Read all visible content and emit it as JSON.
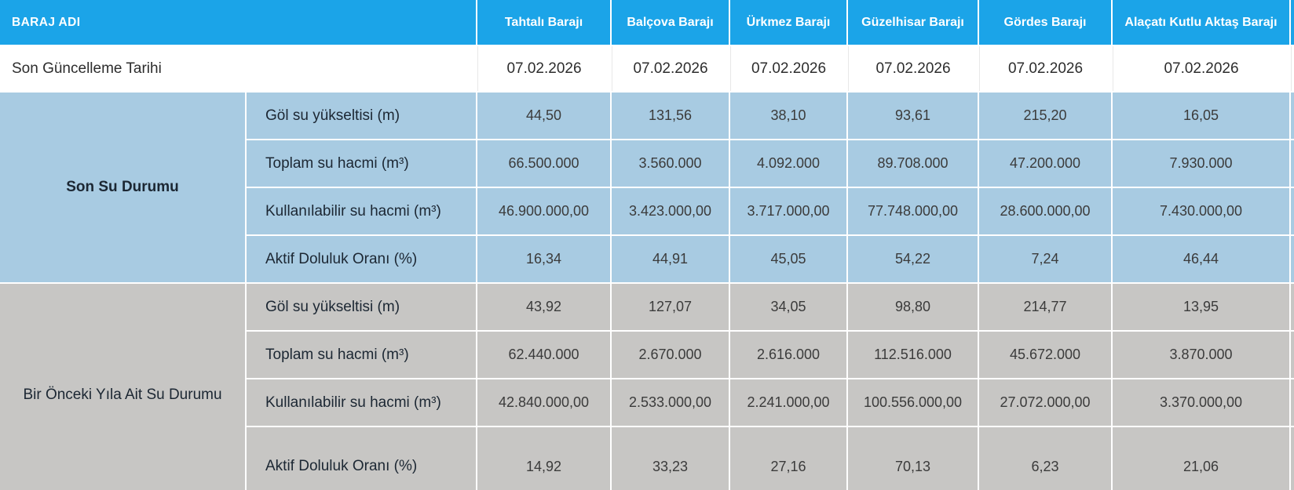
{
  "chart_data": {
    "type": "table",
    "title": "BARAJ ADI",
    "columns": [
      "Tahtalı Barajı",
      "Balçova Barajı",
      "Ürkmez Barajı",
      "Güzelhisar Barajı",
      "Gördes Barajı",
      "Alaçatı Kutlu Aktaş Barajı"
    ],
    "update_label": "Son Güncelleme Tarihi",
    "update_dates": [
      "07.02.2026",
      "07.02.2026",
      "07.02.2026",
      "07.02.2026",
      "07.02.2026",
      "07.02.2026"
    ],
    "sections": [
      {
        "title": "Son Su Durumu",
        "rows": [
          {
            "label": "Göl su yükseltisi (m)",
            "values": [
              "44,50",
              "131,56",
              "38,10",
              "93,61",
              "215,20",
              "16,05"
            ]
          },
          {
            "label": "Toplam su hacmi (m³)",
            "values": [
              "66.500.000",
              "3.560.000",
              "4.092.000",
              "89.708.000",
              "47.200.000",
              "7.930.000"
            ]
          },
          {
            "label": "Kullanılabilir su hacmi (m³)",
            "values": [
              "46.900.000,00",
              "3.423.000,00",
              "3.717.000,00",
              "77.748.000,00",
              "28.600.000,00",
              "7.430.000,00"
            ]
          },
          {
            "label": "Aktif Doluluk Oranı (%)",
            "values": [
              "16,34",
              "44,91",
              "45,05",
              "54,22",
              "7,24",
              "46,44"
            ]
          }
        ]
      },
      {
        "title": "Bir Önceki Yıla Ait Su Durumu",
        "rows": [
          {
            "label": "Göl su yükseltisi (m)",
            "values": [
              "43,92",
              "127,07",
              "34,05",
              "98,80",
              "214,77",
              "13,95"
            ]
          },
          {
            "label": "Toplam su hacmi (m³)",
            "values": [
              "62.440.000",
              "2.670.000",
              "2.616.000",
              "112.516.000",
              "45.672.000",
              "3.870.000"
            ]
          },
          {
            "label": "Kullanılabilir su hacmi (m³)",
            "values": [
              "42.840.000,00",
              "2.533.000,00",
              "2.241.000,00",
              "100.556.000,00",
              "27.072.000,00",
              "3.370.000,00"
            ]
          },
          {
            "label": "Aktif Doluluk Oranı (%)",
            "values": [
              "14,92",
              "33,23",
              "27,16",
              "70,13",
              "6,23",
              "21,06"
            ]
          }
        ]
      }
    ]
  },
  "colors": {
    "header_bg": "#1ba4e8",
    "header_text": "#ffffff",
    "section_recent_bg": "#a8cbe2",
    "section_previous_bg": "#c7c6c4",
    "label_text": "#1c2733",
    "value_text": "#3b3b3b"
  }
}
